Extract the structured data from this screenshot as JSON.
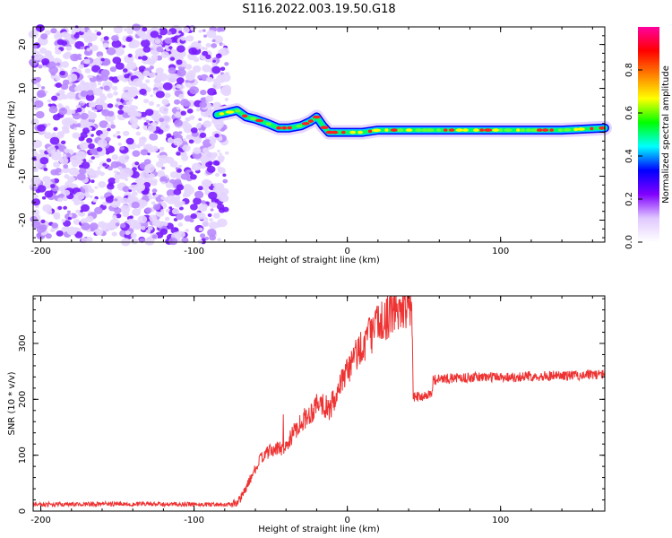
{
  "figure": {
    "title": "S116.2022.003.19.50.G18"
  },
  "chart_data": [
    {
      "type": "heatmap",
      "xlabel": "Height of straight line (km)",
      "ylabel": "Frequency (Hz)",
      "xlim": [
        -205,
        168
      ],
      "ylim": [
        -25,
        24
      ],
      "xticks": [
        -200,
        -100,
        0,
        100
      ],
      "yticks": [
        -20,
        -10,
        0,
        10,
        20
      ],
      "noise_region_x": [
        -205,
        -82
      ],
      "ridge": {
        "x": [
          -85,
          -78,
          -72,
          -66,
          -60,
          -52,
          -45,
          -38,
          -30,
          -24,
          -20,
          -16,
          -12,
          -5,
          0,
          10,
          20,
          40,
          60,
          80,
          100,
          120,
          140,
          168
        ],
        "y": [
          4,
          4.5,
          5,
          3.5,
          3,
          2,
          1,
          1,
          1.5,
          2.5,
          3.5,
          1.5,
          0,
          0,
          0,
          0,
          0.5,
          0.5,
          0.5,
          0.5,
          0.5,
          0.5,
          0.5,
          1
        ]
      },
      "colorbar": {
        "label": "Normalized spectral amplitude",
        "range": [
          0.0,
          1.0
        ],
        "ticks": [
          0.0,
          0.2,
          0.4,
          0.6,
          0.8
        ],
        "tick_labels": [
          "0.0",
          "0.2",
          "0.4",
          "0.6",
          "0.8"
        ],
        "colors": [
          "#ffffff",
          "#e0c8ff",
          "#8000ff",
          "#0000ff",
          "#00ffff",
          "#00ff00",
          "#ffff00",
          "#ff8000",
          "#ff0000",
          "#ff00a0"
        ]
      }
    },
    {
      "type": "line",
      "xlabel": "Height of straight line (km)",
      "ylabel": "SNR (10 * v/v)",
      "xlim": [
        -205,
        168
      ],
      "ylim": [
        0,
        385
      ],
      "xticks": [
        -200,
        -100,
        0,
        100
      ],
      "yticks": [
        0,
        100,
        200,
        300
      ],
      "color": "#ee3333",
      "series": [
        {
          "x": [
            -205,
            -180,
            -150,
            -120,
            -90,
            -75,
            -70,
            -62,
            -55,
            -48,
            -40,
            -32,
            -24,
            -18,
            -12,
            -6,
            0,
            8,
            16,
            24,
            32,
            40,
            42,
            43,
            48,
            55,
            56,
            70,
            90,
            110,
            130,
            150,
            168
          ],
          "values": [
            12,
            12,
            13,
            12,
            12,
            12,
            20,
            65,
            100,
            110,
            115,
            155,
            175,
            200,
            180,
            210,
            250,
            290,
            320,
            345,
            362,
            370,
            370,
            205,
            205,
            210,
            235,
            238,
            240,
            240,
            242,
            243,
            245
          ]
        }
      ]
    }
  ]
}
